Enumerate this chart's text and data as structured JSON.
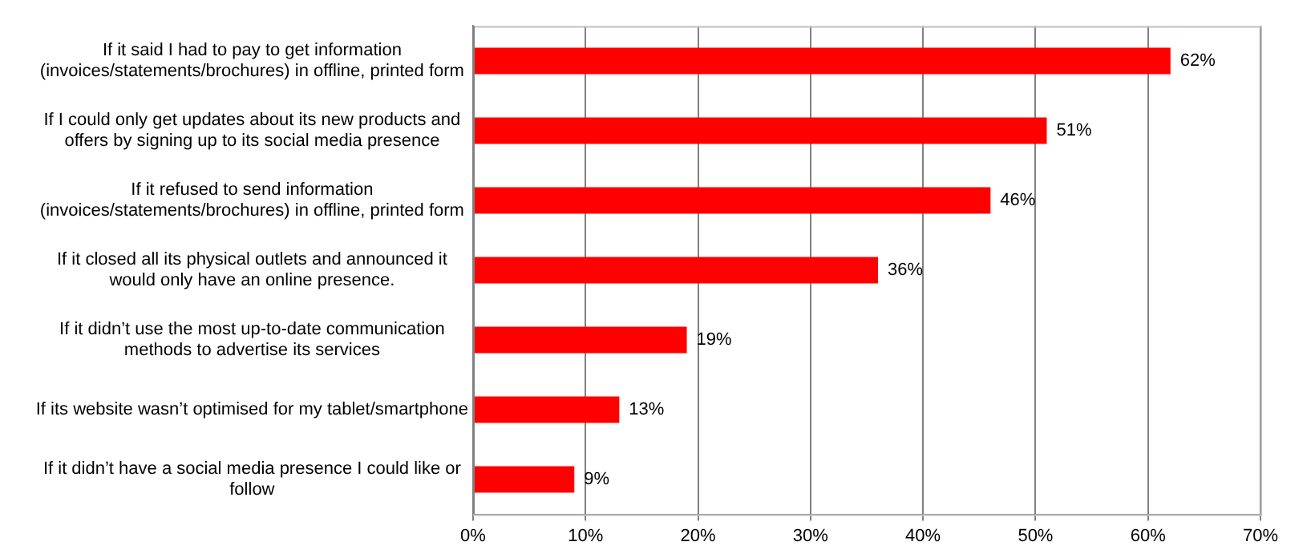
{
  "chart_data": {
    "type": "bar",
    "orientation": "horizontal",
    "categories": [
      "If it said I had to pay to get information (invoices/statements/brochures) in offline, printed form",
      "If I could only get updates about its new products and offers by signing up to its social media presence",
      "If it refused to send information (invoices/statements/brochures) in offline, printed form",
      "If it closed all its physical outlets and announced it would only have an online presence.",
      "If it didn’t use the most up-to-date communication methods to advertise its services",
      "If its website wasn’t optimised for my tablet/smartphone",
      "If it didn’t have a social media presence I could like or follow"
    ],
    "values": [
      62,
      51,
      46,
      36,
      19,
      13,
      9
    ],
    "value_labels": [
      "62%",
      "51%",
      "46%",
      "36%",
      "19%",
      "13%",
      "9%"
    ],
    "color": "#ff0000",
    "xlim": [
      0,
      70
    ],
    "xticks": [
      {
        "value": 0,
        "label": "0%"
      },
      {
        "value": 10,
        "label": "10%"
      },
      {
        "value": 20,
        "label": "20%"
      },
      {
        "value": 30,
        "label": "30%"
      },
      {
        "value": 40,
        "label": "40%"
      },
      {
        "value": 50,
        "label": "50%"
      },
      {
        "value": 60,
        "label": "60%"
      },
      {
        "value": 70,
        "label": "70%"
      }
    ],
    "grid": "x",
    "legend": false
  }
}
